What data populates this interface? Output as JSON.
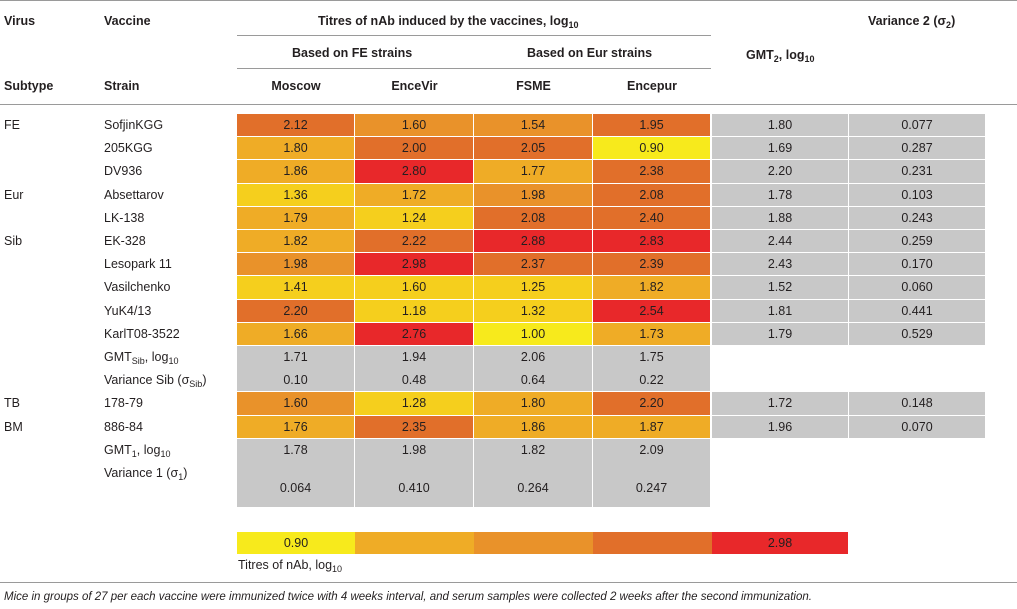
{
  "header": {
    "virus": "Virus",
    "vaccine": "Vaccine",
    "titres_title": "Titres of nAb induced by the vaccines, log",
    "titres_title_sub": "10",
    "variance2": "Variance 2 (σ",
    "variance2_sub": "2",
    "variance2_end": ")",
    "based_fe": "Based on FE strains",
    "based_eur": "Based on Eur strains",
    "gmt2": "GMT",
    "gmt2_sub": "2",
    "gmt2_mid": ", log",
    "gmt2_sub2": "10",
    "subtype": "Subtype",
    "strain": "Strain",
    "col_moscow": "Moscow",
    "col_encevir": "EnceVir",
    "col_fsme": "FSME",
    "col_encepur": "Encepur"
  },
  "colors": {
    "c090": "#f7ea1c",
    "c_low": "#f5cf1d",
    "c_mid": "#efac26",
    "c_midhigh": "#e9922a",
    "c_high": "#e16f2a",
    "c_max": "#e8282a",
    "gray": "#c8c8c8"
  },
  "rows": [
    {
      "subtype": "FE",
      "strain": "SofjinKGG",
      "values": [
        "2.12",
        "1.60",
        "1.54",
        "1.95"
      ],
      "levels": [
        "high",
        "midhigh",
        "midhigh",
        "high"
      ],
      "gmt2": "1.80",
      "var2": "0.077"
    },
    {
      "subtype": "",
      "strain": "205KGG",
      "values": [
        "1.80",
        "2.00",
        "2.05",
        "0.90"
      ],
      "levels": [
        "mid",
        "high",
        "high",
        "c090"
      ],
      "gmt2": "1.69",
      "var2": "0.287"
    },
    {
      "subtype": "",
      "strain": "DV936",
      "values": [
        "1.86",
        "2.80",
        "1.77",
        "2.38"
      ],
      "levels": [
        "mid",
        "max",
        "mid",
        "high"
      ],
      "gmt2": "2.20",
      "var2": "0.231"
    },
    {
      "subtype": "Eur",
      "strain": "Absettarov",
      "values": [
        "1.36",
        "1.72",
        "1.98",
        "2.08"
      ],
      "levels": [
        "low",
        "mid",
        "midhigh",
        "high"
      ],
      "gmt2": "1.78",
      "var2": "0.103"
    },
    {
      "subtype": "",
      "strain": "LK-138",
      "values": [
        "1.79",
        "1.24",
        "2.08",
        "2.40"
      ],
      "levels": [
        "mid",
        "low",
        "high",
        "high"
      ],
      "gmt2": "1.88",
      "var2": "0.243"
    },
    {
      "subtype": "Sib",
      "strain": "EK-328",
      "values": [
        "1.82",
        "2.22",
        "2.88",
        "2.83"
      ],
      "levels": [
        "mid",
        "high",
        "max",
        "max"
      ],
      "gmt2": "2.44",
      "var2": "0.259"
    },
    {
      "subtype": "",
      "strain": "Lesopark 11",
      "values": [
        "1.98",
        "2.98",
        "2.37",
        "2.39"
      ],
      "levels": [
        "midhigh",
        "max",
        "high",
        "high"
      ],
      "gmt2": "2.43",
      "var2": "0.170"
    },
    {
      "subtype": "",
      "strain": "Vasilchenko",
      "values": [
        "1.41",
        "1.60",
        "1.25",
        "1.82"
      ],
      "levels": [
        "low",
        "low",
        "low",
        "mid"
      ],
      "gmt2": "1.52",
      "var2": "0.060"
    },
    {
      "subtype": "",
      "strain": "YuK4/13",
      "values": [
        "2.20",
        "1.18",
        "1.32",
        "2.54"
      ],
      "levels": [
        "high",
        "low",
        "low",
        "max"
      ],
      "gmt2": "1.81",
      "var2": "0.441"
    },
    {
      "subtype": "",
      "strain": "KarlT08-3522",
      "values": [
        "1.66",
        "2.76",
        "1.00",
        "1.73"
      ],
      "levels": [
        "mid",
        "max",
        "c090",
        "mid"
      ],
      "gmt2": "1.79",
      "var2": "0.529"
    }
  ],
  "gmt_sib": {
    "label": "GMT",
    "label_sub": "Sib",
    "label_end": ", log",
    "label_sub2": "10",
    "values": [
      "1.71",
      "1.94",
      "2.06",
      "1.75"
    ]
  },
  "var_sib": {
    "label": "Variance Sib (σ",
    "label_sub": "Sib",
    "label_end": ")",
    "values": [
      "0.10",
      "0.48",
      "0.64",
      "0.22"
    ]
  },
  "rows2": [
    {
      "subtype": "TB",
      "strain": "178-79",
      "values": [
        "1.60",
        "1.28",
        "1.80",
        "2.20"
      ],
      "levels": [
        "midhigh",
        "low",
        "mid",
        "high"
      ],
      "gmt2": "1.72",
      "var2": "0.148"
    },
    {
      "subtype": "BM",
      "strain": "886-84",
      "values": [
        "1.76",
        "2.35",
        "1.86",
        "1.87"
      ],
      "levels": [
        "mid",
        "high",
        "mid",
        "mid"
      ],
      "gmt2": "1.96",
      "var2": "0.070"
    }
  ],
  "gmt1": {
    "label": "GMT",
    "label_sub": "1",
    "label_end": ", log",
    "label_sub2": "10",
    "values": [
      "1.78",
      "1.98",
      "1.82",
      "2.09"
    ]
  },
  "var1": {
    "label": "Variance 1 (σ",
    "label_sub": "1",
    "label_end": ")",
    "values": [
      "0.064",
      "0.410",
      "0.264",
      "0.247"
    ]
  },
  "legend": {
    "min": "0.90",
    "max": "2.98",
    "label": "Titres of nAb, log",
    "label_sub": "10"
  },
  "footnote": "Mice in groups of 27 per each vaccine were immunized twice with 4 weeks interval, and serum samples were collected 2 weeks after the second immunization."
}
